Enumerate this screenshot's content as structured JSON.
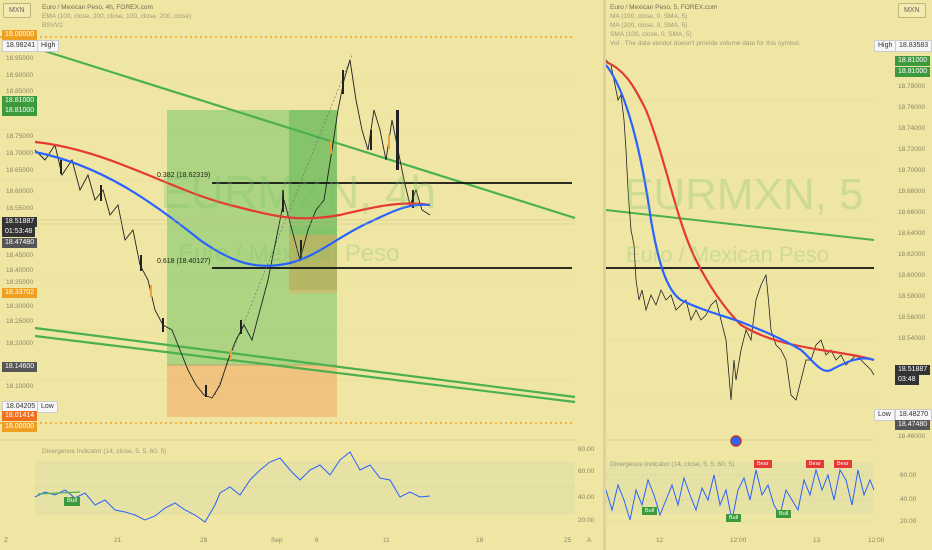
{
  "left": {
    "symbol_badge": "MXN",
    "legend": {
      "title": "Euro / Mexican Peso, 4h, FOREX.com",
      "line2": "EMA (100, close, 200, close, 100, close, 200, close)",
      "line3": "BSVV2"
    },
    "watermark_main": "EURMXN, 4h",
    "watermark_sub": "Euro / Mexican Peso",
    "fib_382": "0.382 (18.62319)",
    "fib_618": "0.618 (18.40127)",
    "price_axis": [
      "19.00000",
      "18.98241",
      "18.95000",
      "18.90000",
      "18.85000",
      "18.81000",
      "18.81000",
      "18.75000",
      "18.70000",
      "18.65000",
      "18.60000",
      "18.55000",
      "18.51887",
      "01:53:48",
      "18.47480",
      "18.45000",
      "18.40000",
      "18.35000",
      "18.33702",
      "18.30000",
      "18.25000",
      "18.20000",
      "18.14600",
      "18.10000",
      "18.04205",
      "18.01414",
      "18.00000"
    ],
    "high_tag": "High",
    "low_tag": "Low",
    "time_axis": [
      "Z",
      "21",
      "28",
      "Sep",
      "6",
      "11",
      "18",
      "25",
      "A"
    ],
    "indicator_title": "Divergence Indicator (14, close, 5, 5, 60, 5)",
    "indicator_axis": [
      "80.00",
      "60.00",
      "40.00",
      "20.00"
    ],
    "bull_label": "Bull"
  },
  "right": {
    "symbol_badge": "MXN",
    "legend": {
      "title": "Euro / Mexican Peso, 5, FOREX.com",
      "line2": "MA (100, close, 0, SMA, 5)",
      "line3": "MA (200, close, 0, SMA, 5)",
      "line4": "SMA (100, close, 0, SMA, 5)",
      "line5": "Vol · The data vendor doesn't provide volume data for this symbol."
    },
    "watermark_main": "EURMXN, 5",
    "watermark_sub": "Euro / Mexican Peso",
    "price_axis": [
      "18.83583",
      "18.81000",
      "18.81000",
      "18.78000",
      "18.76000",
      "18.74000",
      "18.72000",
      "18.70000",
      "18.68000",
      "18.66000",
      "18.64000",
      "18.62000",
      "18.60000",
      "18.58000",
      "18.56000",
      "18.54000",
      "18.51887",
      "03:48",
      "18.48270",
      "18.47480",
      "18.46000"
    ],
    "high_tag": "High",
    "low_tag": "Low",
    "time_axis": [
      "12",
      "12:00",
      "13",
      "12:00"
    ],
    "indicator_title": "Divergence Indicator (14, close, 5, 5, 60, 5)",
    "indicator_axis": [
      "60.00",
      "40.00",
      "20.00"
    ],
    "bear_label": "Bear",
    "bull_label": "Bull"
  },
  "colors": {
    "background": "#efe6a4",
    "ema_red": "#e53935",
    "ema_blue": "#2962ff",
    "trend_green": "#4caf50",
    "fib_line": "#111111",
    "dotted_orange": "#f0a020"
  }
}
